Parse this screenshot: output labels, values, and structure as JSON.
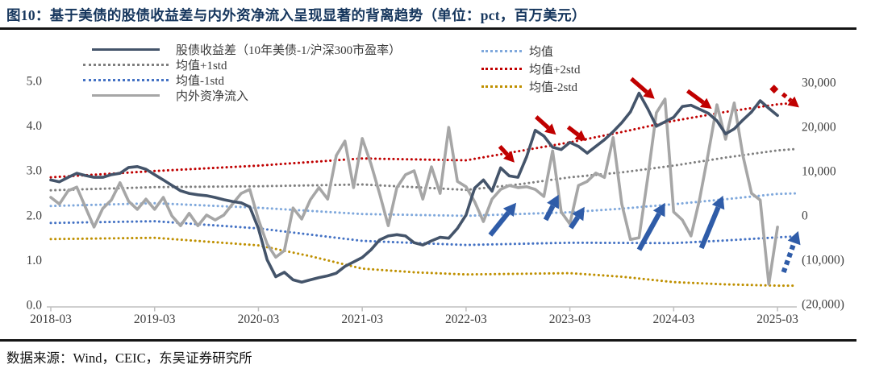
{
  "title": "图10：基于美债的股债收益差与内外资净流入呈现显著的背离趋势（单位：pct，百万美元）",
  "source_note": "数据来源：Wind，CEIC，东吴证券研究所",
  "legend": {
    "column1": [
      {
        "label": "股债收益差（10年美债-1/沪深300市盈率）",
        "series": "spread"
      },
      {
        "label": "均值+1std",
        "series": "mean_p1"
      },
      {
        "label": "均值-1std",
        "series": "mean_m1"
      },
      {
        "label": "内外资净流入",
        "series": "flow"
      }
    ],
    "column2": [
      {
        "label": "均值",
        "series": "mean"
      },
      {
        "label": "均值+2std",
        "series": "mean_p2"
      },
      {
        "label": "均值-2std",
        "series": "mean_m2"
      }
    ]
  },
  "chart_data": {
    "type": "line",
    "x_start": "2018-03",
    "x_interval": "monthly",
    "x_tick_labels": [
      "2018-03",
      "2019-03",
      "2020-03",
      "2021-03",
      "2022-03",
      "2023-03",
      "2024-03",
      "2025-03"
    ],
    "x_tick_month_indices": [
      0,
      12,
      24,
      36,
      48,
      60,
      72,
      84
    ],
    "axis_color": "#BFBFBF",
    "left_axis": {
      "unit": "pct",
      "tick_values": [
        5,
        4,
        3,
        2,
        1,
        0
      ],
      "tick_labels": [
        "5.0",
        "4.0",
        "3.0",
        "2.0",
        "1.0",
        "0.0"
      ],
      "range": [
        0,
        5
      ]
    },
    "right_axis": {
      "unit": "百万美元",
      "tick_values": [
        30000,
        20000,
        10000,
        0,
        -10000,
        -20000
      ],
      "tick_labels": [
        "30,000",
        "20,000",
        "10,000",
        "0",
        "(10,000)",
        "(20,000)"
      ],
      "range": [
        -20000,
        30000
      ],
      "negative_color": "#FF0000"
    },
    "series": [
      {
        "key": "spread",
        "name": "股债收益差（10年美债-1/沪深300市盈率）",
        "axis": "left",
        "style": "solid",
        "color": "#44546A",
        "width": 3.6,
        "values": [
          2.78,
          2.74,
          2.84,
          2.93,
          2.88,
          2.84,
          2.84,
          2.9,
          2.93,
          3.06,
          3.08,
          3.02,
          2.9,
          2.78,
          2.66,
          2.54,
          2.48,
          2.45,
          2.43,
          2.39,
          2.34,
          2.3,
          2.27,
          2.18,
          1.7,
          1.0,
          0.62,
          0.72,
          0.55,
          0.5,
          0.55,
          0.6,
          0.64,
          0.7,
          0.85,
          0.95,
          1.05,
          1.22,
          1.44,
          1.53,
          1.56,
          1.53,
          1.38,
          1.33,
          1.42,
          1.5,
          1.48,
          1.7,
          2.0,
          2.6,
          2.78,
          2.53,
          3.05,
          2.87,
          2.84,
          3.3,
          3.89,
          3.76,
          3.51,
          3.46,
          3.62,
          3.53,
          3.38,
          3.53,
          3.68,
          3.86,
          4.06,
          4.3,
          4.72,
          4.37,
          3.98,
          4.08,
          4.18,
          4.42,
          4.45,
          4.36,
          4.27,
          4.1,
          3.81,
          3.92,
          4.12,
          4.3,
          4.55,
          4.38,
          4.22
        ]
      },
      {
        "key": "flow",
        "name": "内外资净流入",
        "axis": "right",
        "style": "solid",
        "color": "#A6A6A6",
        "width": 3.6,
        "values": [
          4000,
          2500,
          5500,
          6300,
          1800,
          -2700,
          1500,
          3400,
          7300,
          3100,
          1300,
          3600,
          1300,
          4000,
          -200,
          -2400,
          400,
          -2400,
          0,
          -1100,
          0,
          2500,
          4900,
          5800,
          -1000,
          -6500,
          -9500,
          -8000,
          1600,
          -900,
          3450,
          6200,
          3600,
          13450,
          16700,
          6200,
          17300,
          11600,
          4900,
          -2400,
          6200,
          9100,
          10000,
          3600,
          10900,
          4900,
          19800,
          7600,
          6400,
          3000,
          -1450,
          3600,
          5800,
          6700,
          6200,
          6400,
          5800,
          4200,
          14500,
          700,
          -2000,
          6700,
          7600,
          9500,
          8500,
          17500,
          2500,
          -5500,
          -5100,
          8500,
          23100,
          26200,
          700,
          -1100,
          -4700,
          3600,
          14000,
          24900,
          17100,
          25300,
          13400,
          4900,
          3400,
          -15600,
          -2700
        ]
      },
      {
        "key": "mean",
        "name": "均值",
        "axis": "left",
        "style": "dotted",
        "color": "#7FA8DC",
        "width": 3,
        "anchors": [
          [
            0,
            2.2
          ],
          [
            12,
            2.26
          ],
          [
            24,
            2.16
          ],
          [
            36,
            2.02
          ],
          [
            48,
            1.98
          ],
          [
            60,
            2.06
          ],
          [
            66,
            2.14
          ],
          [
            72,
            2.24
          ],
          [
            78,
            2.35
          ],
          [
            84,
            2.47
          ],
          [
            86,
            2.48
          ]
        ]
      },
      {
        "key": "mean_p1",
        "name": "均值+1std",
        "axis": "left",
        "style": "dotted",
        "color": "#7F7F7F",
        "width": 3,
        "anchors": [
          [
            0,
            2.55
          ],
          [
            12,
            2.62
          ],
          [
            24,
            2.64
          ],
          [
            36,
            2.68
          ],
          [
            42,
            2.62
          ],
          [
            48,
            2.56
          ],
          [
            54,
            2.68
          ],
          [
            60,
            2.84
          ],
          [
            66,
            2.95
          ],
          [
            72,
            3.1
          ],
          [
            78,
            3.28
          ],
          [
            84,
            3.44
          ],
          [
            86,
            3.47
          ]
        ]
      },
      {
        "key": "mean_m1",
        "name": "均值-1std",
        "axis": "left",
        "style": "dotted",
        "color": "#4472C4",
        "width": 3,
        "anchors": [
          [
            0,
            1.82
          ],
          [
            12,
            1.86
          ],
          [
            24,
            1.7
          ],
          [
            36,
            1.42
          ],
          [
            48,
            1.33
          ],
          [
            60,
            1.38
          ],
          [
            72,
            1.37
          ],
          [
            78,
            1.43
          ],
          [
            84,
            1.5
          ],
          [
            86,
            1.52
          ]
        ]
      },
      {
        "key": "mean_p2",
        "name": "均值+2std",
        "axis": "left",
        "style": "dotted",
        "color": "#C00000",
        "width": 3,
        "anchors": [
          [
            0,
            2.84
          ],
          [
            12,
            2.98
          ],
          [
            24,
            3.1
          ],
          [
            36,
            3.26
          ],
          [
            48,
            3.22
          ],
          [
            54,
            3.42
          ],
          [
            60,
            3.62
          ],
          [
            66,
            3.85
          ],
          [
            72,
            4.1
          ],
          [
            78,
            4.3
          ],
          [
            84,
            4.47
          ],
          [
            86,
            4.5
          ]
        ]
      },
      {
        "key": "mean_m2",
        "name": "均值-2std",
        "axis": "left",
        "style": "dotted",
        "color": "#BF9000",
        "width": 3,
        "anchors": [
          [
            0,
            1.46
          ],
          [
            12,
            1.49
          ],
          [
            24,
            1.32
          ],
          [
            30,
            1.08
          ],
          [
            36,
            0.8
          ],
          [
            42,
            0.72
          ],
          [
            48,
            0.67
          ],
          [
            60,
            0.7
          ],
          [
            66,
            0.62
          ],
          [
            72,
            0.5
          ],
          [
            78,
            0.45
          ],
          [
            84,
            0.42
          ],
          [
            86,
            0.42
          ]
        ]
      }
    ],
    "annotations": {
      "red_color": "#C00000",
      "blue_color": "#2F5CA8",
      "red_arrows": [
        {
          "from": [
            51.9,
            3.53
          ],
          "to": [
            53.6,
            3.17
          ]
        },
        {
          "from": [
            56.1,
            4.19
          ],
          "to": [
            58.4,
            3.79
          ]
        },
        {
          "from": [
            59.8,
            3.96
          ],
          "to": [
            61.9,
            3.65
          ]
        },
        {
          "from": [
            67.1,
            5.04
          ],
          "to": [
            69.8,
            4.59
          ]
        },
        {
          "from": [
            73.6,
            4.77
          ],
          "to": [
            76.4,
            4.37
          ]
        }
      ],
      "red_dashed_arrow": {
        "dot": [
          83.6,
          4.81
        ],
        "from": [
          84.6,
          4.7
        ],
        "to": [
          86.5,
          4.4
        ]
      },
      "blue_arrows": [
        {
          "from": [
            50.8,
            1.55
          ],
          "to": [
            53.8,
            2.27
          ]
        },
        {
          "from": [
            57.2,
            1.89
          ],
          "to": [
            58.7,
            2.45
          ]
        },
        {
          "from": [
            60.1,
            1.71
          ],
          "to": [
            61.7,
            2.18
          ]
        },
        {
          "from": [
            68.0,
            1.22
          ],
          "to": [
            71.0,
            2.27
          ]
        },
        {
          "from": [
            75.2,
            1.26
          ],
          "to": [
            77.7,
            2.43
          ]
        }
      ],
      "blue_dashed_arrow": {
        "from": [
          84.7,
          0.72
        ],
        "to": [
          86.4,
          1.64
        ]
      }
    }
  }
}
